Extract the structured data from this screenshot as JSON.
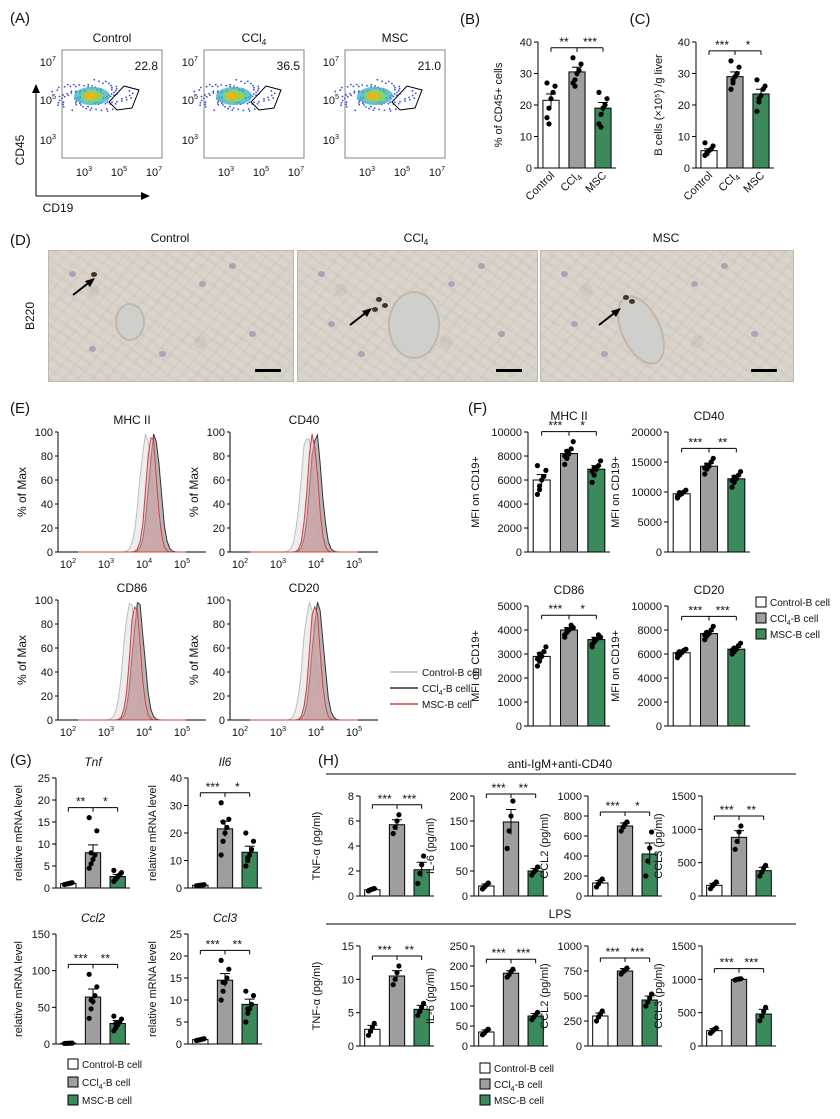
{
  "panels": {
    "A": {
      "letter": "(A)",
      "plots": [
        {
          "title": "Control",
          "title_sub": "",
          "gate_value": "22.8"
        },
        {
          "title": "CCl",
          "title_sub": "4",
          "gate_value": "36.5"
        },
        {
          "title": "MSC",
          "title_sub": "",
          "gate_value": "21.0"
        }
      ],
      "y_axis_label": "CD45",
      "x_axis_label": "CD19",
      "ticks": [
        "10",
        "10",
        "10"
      ],
      "tick_exps": [
        "3",
        "5",
        "7"
      ]
    },
    "D": {
      "letter": "(D)",
      "stain_label": "B220",
      "images": [
        "Control",
        "CCl",
        "MSC"
      ],
      "image_subs": [
        "",
        "4",
        ""
      ]
    },
    "E": {
      "letter": "(E)",
      "ylabel": "% of Max",
      "histograms": [
        "MHC II",
        "CD40",
        "CD86",
        "CD20"
      ],
      "legend": [
        "Control-B cell",
        "CCl",
        "MSC-B cell"
      ],
      "legend_ccl4_suffix": "-B cell",
      "xtick_base": "10",
      "xtick_exps": [
        "2",
        "3",
        "4",
        "5"
      ],
      "yticks": [
        "0",
        "20",
        "40",
        "60",
        "80",
        "100"
      ]
    },
    "F": {
      "letter": "(F)"
    },
    "G": {
      "letter": "(G)"
    },
    "H": {
      "letter": "(H)",
      "section_titles": [
        "anti-IgM+anti-CD40",
        "LPS"
      ]
    }
  },
  "legend_groups": [
    "Control-B cell",
    "CCl4-B cell",
    "MSC-B cell"
  ],
  "colors": {
    "control": "#ffffff",
    "ccl4": "#9e9e9e",
    "msc": "#3a8a5c",
    "flow_gate": "#000000"
  },
  "chart_data": [
    {
      "id": "B",
      "type": "bar",
      "letter": "(B)",
      "ylabel": "% of CD45+ cells",
      "categories": [
        "Control",
        "CCl4",
        "MSC"
      ],
      "values": [
        21.5,
        30.5,
        19.0
      ],
      "sem": [
        2.0,
        1.5,
        1.8
      ],
      "ylim": [
        0,
        40
      ],
      "yticks": [
        0,
        10,
        20,
        30,
        40
      ],
      "points": [
        [
          16,
          19,
          22,
          24,
          26,
          27,
          14
        ],
        [
          27,
          28,
          30,
          31,
          33,
          35,
          26
        ],
        [
          14,
          17,
          19,
          20,
          22,
          24,
          13
        ]
      ],
      "sig": [
        {
          "a": 0,
          "b": 1,
          "label": "**"
        },
        {
          "a": 1,
          "b": 2,
          "label": "***"
        }
      ]
    },
    {
      "id": "C",
      "type": "bar",
      "letter": "(C)",
      "ylabel": "B cells (×10⁵) /g liver",
      "categories": [
        "Control",
        "CCl4",
        "MSC"
      ],
      "values": [
        5.5,
        29.0,
        23.5
      ],
      "sem": [
        0.6,
        1.5,
        1.5
      ],
      "ylim": [
        0,
        40
      ],
      "yticks": [
        0,
        10,
        20,
        30,
        40
      ],
      "points": [
        [
          4,
          5,
          5.5,
          6,
          7,
          8,
          4.5
        ],
        [
          25,
          27,
          29,
          30,
          32,
          34,
          28
        ],
        [
          18,
          21,
          23,
          25,
          26,
          28,
          22
        ]
      ],
      "sig": [
        {
          "a": 0,
          "b": 1,
          "label": "***"
        },
        {
          "a": 1,
          "b": 2,
          "label": "*"
        }
      ]
    },
    {
      "id": "F1",
      "type": "bar",
      "title": "MHC II",
      "ylabel": "MFI on CD19+",
      "categories": [
        "Control-B cell",
        "CCl4-B cell",
        "MSC-B cell"
      ],
      "values": [
        6000,
        8200,
        6900
      ],
      "sem": [
        450,
        300,
        300
      ],
      "ylim": [
        0,
        10000
      ],
      "yticks": [
        0,
        2000,
        4000,
        6000,
        8000,
        10000
      ],
      "points": [
        [
          4800,
          5500,
          6000,
          6300,
          6800,
          7200,
          5200
        ],
        [
          7300,
          7800,
          8200,
          8600,
          9200,
          8000,
          8400
        ],
        [
          5800,
          6400,
          6900,
          7200,
          7600,
          6700,
          7000
        ]
      ],
      "sig": [
        {
          "a": 0,
          "b": 1,
          "label": "***"
        },
        {
          "a": 1,
          "b": 2,
          "label": "*"
        }
      ]
    },
    {
      "id": "F2",
      "type": "bar",
      "title": "CD40",
      "ylabel": "MFI on CD19+",
      "categories": [
        "Control-B cell",
        "CCl4-B cell",
        "MSC-B cell"
      ],
      "values": [
        9700,
        14300,
        12200
      ],
      "sem": [
        300,
        500,
        500
      ],
      "ylim": [
        0,
        20000
      ],
      "yticks": [
        0,
        5000,
        10000,
        15000,
        20000
      ],
      "points": [
        [
          9000,
          9500,
          9700,
          10000,
          10300,
          9300,
          9900
        ],
        [
          13000,
          13800,
          14300,
          15000,
          15600,
          14000,
          14500
        ],
        [
          10800,
          11600,
          12200,
          12800,
          13400,
          11900,
          12500
        ]
      ],
      "sig": [
        {
          "a": 0,
          "b": 1,
          "label": "***"
        },
        {
          "a": 1,
          "b": 2,
          "label": "**"
        }
      ]
    },
    {
      "id": "F3",
      "type": "bar",
      "title": "CD86",
      "ylabel": "MFI on CD19+",
      "categories": [
        "Control-B cell",
        "CCl4-B cell",
        "MSC-B cell"
      ],
      "values": [
        2900,
        4000,
        3600
      ],
      "sem": [
        150,
        100,
        100
      ],
      "ylim": [
        0,
        5000
      ],
      "yticks": [
        0,
        1000,
        2000,
        3000,
        4000,
        5000
      ],
      "points": [
        [
          2500,
          2700,
          2900,
          3100,
          3300,
          2800,
          3000
        ],
        [
          3700,
          3900,
          4000,
          4200,
          4100,
          3800,
          4000
        ],
        [
          3300,
          3500,
          3600,
          3800,
          3700,
          3400,
          3600
        ]
      ],
      "sig": [
        {
          "a": 0,
          "b": 1,
          "label": "***"
        },
        {
          "a": 1,
          "b": 2,
          "label": "*"
        }
      ]
    },
    {
      "id": "F4",
      "type": "bar",
      "title": "CD20",
      "ylabel": "MFI on CD19+",
      "categories": [
        "Control-B cell",
        "CCl4-B cell",
        "MSC-B cell"
      ],
      "values": [
        6100,
        7700,
        6400
      ],
      "sem": [
        150,
        200,
        150
      ],
      "ylim": [
        0,
        10000
      ],
      "yticks": [
        0,
        2000,
        4000,
        6000,
        8000,
        10000
      ],
      "points": [
        [
          5700,
          5900,
          6100,
          6300,
          6400,
          6000,
          6200
        ],
        [
          7200,
          7500,
          7700,
          8000,
          8300,
          7600,
          7800
        ],
        [
          6000,
          6200,
          6400,
          6700,
          6900,
          6300,
          6500
        ]
      ],
      "sig": [
        {
          "a": 0,
          "b": 1,
          "label": "***"
        },
        {
          "a": 1,
          "b": 2,
          "label": "***"
        }
      ]
    },
    {
      "id": "G1",
      "type": "bar",
      "title": "Tnf",
      "ylabel": "relative mRNA level",
      "categories": [
        "Control-B cell",
        "CCl4-B cell",
        "MSC-B cell"
      ],
      "values": [
        1.0,
        8.0,
        2.6
      ],
      "sem": [
        0.1,
        1.8,
        0.5
      ],
      "ylim": [
        0,
        25
      ],
      "yticks": [
        0,
        5,
        10,
        15,
        20,
        25
      ],
      "points": [
        [
          0.8,
          0.9,
          1.0,
          1.1,
          1.2
        ],
        [
          4.5,
          5.5,
          6.5,
          7.5,
          13,
          16,
          8
        ],
        [
          1.5,
          2.0,
          2.5,
          3.0,
          3.5,
          4.0,
          2.2
        ]
      ],
      "sig": [
        {
          "a": 0,
          "b": 1,
          "label": "**"
        },
        {
          "a": 1,
          "b": 2,
          "label": "*"
        }
      ]
    },
    {
      "id": "G2",
      "type": "bar",
      "title": "Il6",
      "ylabel": "relative mRNA level",
      "categories": [
        "Control-B cell",
        "CCl4-B cell",
        "MSC-B cell"
      ],
      "values": [
        1.0,
        21.5,
        13.0
      ],
      "sem": [
        0.1,
        2.8,
        2.2
      ],
      "ylim": [
        0,
        40
      ],
      "yticks": [
        0,
        10,
        20,
        30,
        40
      ],
      "points": [
        [
          0.8,
          0.9,
          1.0,
          1.1,
          1.2
        ],
        [
          12,
          17,
          20,
          22,
          25,
          31,
          24
        ],
        [
          8,
          10,
          12,
          14,
          17,
          20,
          11
        ]
      ],
      "sig": [
        {
          "a": 0,
          "b": 1,
          "label": "***"
        },
        {
          "a": 1,
          "b": 2,
          "label": "*"
        }
      ]
    },
    {
      "id": "G3",
      "type": "bar",
      "title": "Ccl2",
      "ylabel": "relative mRNA level",
      "categories": [
        "Control-B cell",
        "CCl4-B cell",
        "MSC-B cell"
      ],
      "values": [
        1.0,
        64.0,
        28.0
      ],
      "sem": [
        0.2,
        11.0,
        4.0
      ],
      "ylim": [
        0,
        150
      ],
      "yticks": [
        0,
        50,
        100,
        150
      ],
      "points": [
        [
          0.8,
          0.9,
          1.0,
          1.1,
          1.2
        ],
        [
          35,
          48,
          58,
          66,
          78,
          95,
          60
        ],
        [
          18,
          22,
          26,
          30,
          34,
          38,
          28
        ]
      ],
      "sig": [
        {
          "a": 0,
          "b": 1,
          "label": "***"
        },
        {
          "a": 1,
          "b": 2,
          "label": "**"
        }
      ]
    },
    {
      "id": "G4",
      "type": "bar",
      "title": "Ccl3",
      "ylabel": "relative mRNA level",
      "categories": [
        "Control-B cell",
        "CCl4-B cell",
        "MSC-B cell"
      ],
      "values": [
        1.0,
        14.5,
        9.0
      ],
      "sem": [
        0.1,
        1.5,
        1.2
      ],
      "ylim": [
        0,
        25
      ],
      "yticks": [
        0,
        5,
        10,
        15,
        20,
        25
      ],
      "points": [
        [
          0.8,
          0.9,
          1.0,
          1.1,
          1.2
        ],
        [
          10,
          12,
          14,
          15,
          17,
          19,
          14
        ],
        [
          5,
          7,
          8,
          9,
          11,
          12,
          8
        ]
      ],
      "sig": [
        {
          "a": 0,
          "b": 1,
          "label": "***"
        },
        {
          "a": 1,
          "b": 2,
          "label": "**"
        }
      ]
    },
    {
      "id": "H1",
      "type": "bar",
      "title": "",
      "ylabel": "TNF-α (pg/ml)",
      "categories": [
        "Control-B cell",
        "CCl4-B cell",
        "MSC-B cell"
      ],
      "values": [
        0.5,
        5.7,
        2.1
      ],
      "sem": [
        0.1,
        0.4,
        0.6
      ],
      "ylim": [
        0,
        8
      ],
      "yticks": [
        0,
        2,
        4,
        6,
        8
      ],
      "points": [
        [
          0.4,
          0.5,
          0.55,
          0.6
        ],
        [
          5.0,
          5.5,
          6.0,
          6.5
        ],
        [
          1.0,
          1.8,
          2.5,
          3.2
        ]
      ],
      "sig": [
        {
          "a": 0,
          "b": 1,
          "label": "***"
        },
        {
          "a": 1,
          "b": 2,
          "label": "***"
        }
      ]
    },
    {
      "id": "H2",
      "type": "bar",
      "title": "",
      "ylabel": "IL-6 (pg/ml)",
      "categories": [
        "Control-B cell",
        "CCl4-B cell",
        "MSC-B cell"
      ],
      "values": [
        20,
        148,
        50
      ],
      "sem": [
        4,
        25,
        5
      ],
      "ylim": [
        0,
        200
      ],
      "yticks": [
        0,
        50,
        100,
        150,
        200
      ],
      "points": [
        [
          14,
          18,
          22,
          26
        ],
        [
          95,
          130,
          160,
          190
        ],
        [
          42,
          48,
          52,
          58
        ]
      ],
      "sig": [
        {
          "a": 0,
          "b": 1,
          "label": "***"
        },
        {
          "a": 1,
          "b": 2,
          "label": "**"
        }
      ]
    },
    {
      "id": "H3",
      "type": "bar",
      "title": "",
      "ylabel": "CCL2 (pg/ml)",
      "categories": [
        "Control-B cell",
        "CCl4-B cell",
        "MSC-B cell"
      ],
      "values": [
        130,
        700,
        420
      ],
      "sem": [
        25,
        30,
        110
      ],
      "ylim": [
        0,
        1000
      ],
      "yticks": [
        0,
        200,
        400,
        600,
        800,
        1000
      ],
      "points": [
        [
          90,
          120,
          150,
          170
        ],
        [
          650,
          690,
          720,
          740
        ],
        [
          200,
          350,
          480,
          640
        ]
      ],
      "sig": [
        {
          "a": 0,
          "b": 1,
          "label": "***"
        },
        {
          "a": 1,
          "b": 2,
          "label": "*"
        }
      ]
    },
    {
      "id": "H4",
      "type": "bar",
      "title": "",
      "ylabel": "CCL3 (pg/ml)",
      "categories": [
        "Control-B cell",
        "CCl4-B cell",
        "MSC-B cell"
      ],
      "values": [
        160,
        880,
        380
      ],
      "sem": [
        30,
        100,
        50
      ],
      "ylim": [
        0,
        1500
      ],
      "yticks": [
        0,
        500,
        1000,
        1500
      ],
      "points": [
        [
          110,
          150,
          180,
          210
        ],
        [
          700,
          820,
          960,
          1050
        ],
        [
          300,
          360,
          420,
          460
        ]
      ],
      "sig": [
        {
          "a": 0,
          "b": 1,
          "label": "***"
        },
        {
          "a": 1,
          "b": 2,
          "label": "**"
        }
      ]
    },
    {
      "id": "H5",
      "type": "bar",
      "title": "",
      "ylabel": "TNF-α (pg/ml)",
      "categories": [
        "Control-B cell",
        "CCl4-B cell",
        "MSC-B cell"
      ],
      "values": [
        2.5,
        10.5,
        5.5
      ],
      "sem": [
        0.6,
        0.8,
        0.6
      ],
      "ylim": [
        0,
        15
      ],
      "yticks": [
        0,
        5,
        10,
        15
      ],
      "points": [
        [
          1.6,
          2.2,
          2.8,
          3.4
        ],
        [
          9.2,
          10.0,
          11.0,
          12.0
        ],
        [
          4.6,
          5.2,
          5.8,
          6.4
        ]
      ],
      "sig": [
        {
          "a": 0,
          "b": 1,
          "label": "***"
        },
        {
          "a": 1,
          "b": 2,
          "label": "**"
        }
      ]
    },
    {
      "id": "H6",
      "type": "bar",
      "title": "",
      "ylabel": "IL-6 (pg/ml)",
      "categories": [
        "Control-B cell",
        "CCl4-B cell",
        "MSC-B cell"
      ],
      "values": [
        35,
        182,
        75
      ],
      "sem": [
        5,
        6,
        6
      ],
      "ylim": [
        0,
        250
      ],
      "yticks": [
        0,
        50,
        100,
        150,
        200,
        250
      ],
      "points": [
        [
          28,
          32,
          38,
          42
        ],
        [
          172,
          178,
          186,
          192
        ],
        [
          66,
          72,
          78,
          84
        ]
      ],
      "sig": [
        {
          "a": 0,
          "b": 1,
          "label": "***"
        },
        {
          "a": 1,
          "b": 2,
          "label": "***"
        }
      ]
    },
    {
      "id": "H7",
      "type": "bar",
      "title": "",
      "ylabel": "CCL2 (pg/ml)",
      "categories": [
        "Control-B cell",
        "CCl4-B cell",
        "MSC-B cell"
      ],
      "values": [
        300,
        750,
        460
      ],
      "sem": [
        30,
        25,
        40
      ],
      "ylim": [
        0,
        1000
      ],
      "yticks": [
        0,
        250,
        500,
        750,
        1000
      ],
      "points": [
        [
          250,
          290,
          320,
          350
        ],
        [
          720,
          745,
          760,
          780
        ],
        [
          400,
          440,
          480,
          520
        ]
      ],
      "sig": [
        {
          "a": 0,
          "b": 1,
          "label": "***"
        },
        {
          "a": 1,
          "b": 2,
          "label": "***"
        }
      ]
    },
    {
      "id": "H8",
      "type": "bar",
      "title": "",
      "ylabel": "CCL3 (pg/ml)",
      "categories": [
        "Control-B cell",
        "CCl4-B cell",
        "MSC-B cell"
      ],
      "values": [
        230,
        1000,
        480
      ],
      "sem": [
        30,
        10,
        70
      ],
      "ylim": [
        0,
        1500
      ],
      "yticks": [
        0,
        500,
        1000,
        1500
      ],
      "points": [
        [
          190,
          220,
          250,
          270
        ],
        [
          990,
          1000,
          1005,
          1010
        ],
        [
          380,
          450,
          520,
          580
        ]
      ],
      "sig": [
        {
          "a": 0,
          "b": 1,
          "label": "***"
        },
        {
          "a": 1,
          "b": 2,
          "label": "***"
        }
      ]
    }
  ]
}
